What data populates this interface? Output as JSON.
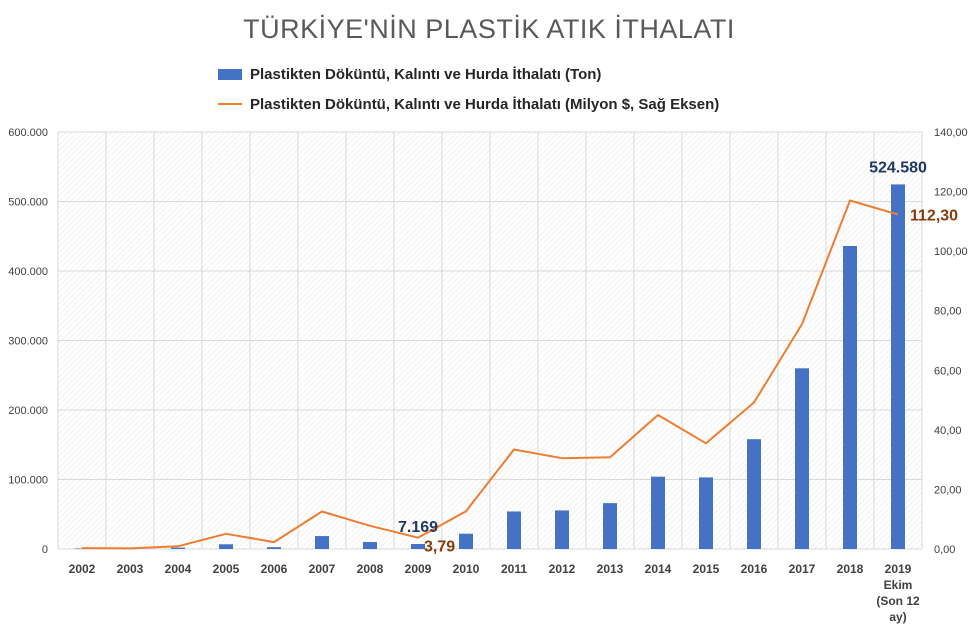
{
  "chart_data": {
    "type": "bar",
    "title": "TÜRKİYE'NİN PLASTİK ATIK İTHALATI",
    "categories": [
      "2002",
      "2003",
      "2004",
      "2005",
      "2006",
      "2007",
      "2008",
      "2009",
      "2010",
      "2011",
      "2012",
      "2013",
      "2014",
      "2015",
      "2016",
      "2017",
      "2018",
      "2019"
    ],
    "last_category_lines": [
      "2019",
      "Ekim",
      "(Son 12",
      "ay)"
    ],
    "series": [
      {
        "name": "Plastikten Döküntü, Kalıntı ve Hurda  İthalatı (Ton)",
        "type": "bar",
        "axis": "left",
        "color": "#4472C4",
        "values": [
          800,
          500,
          2000,
          6800,
          2600,
          18600,
          10000,
          7169,
          22000,
          54000,
          55500,
          66000,
          104000,
          103000,
          158000,
          260000,
          436000,
          524580
        ]
      },
      {
        "name": "Plastikten Döküntü, Kalıntı ve Hurda  İthalatı (Milyon $, Sağ Eksen)",
        "type": "line",
        "axis": "right",
        "color": "#ED7D31",
        "values": [
          0.3,
          0.2,
          0.9,
          5.1,
          2.3,
          12.6,
          7.8,
          3.79,
          12.7,
          33.4,
          30.5,
          30.8,
          45.0,
          35.5,
          49.2,
          75.5,
          117.0,
          112.3
        ]
      }
    ],
    "y_left": {
      "ylim": [
        0,
        600000
      ],
      "ticks": [
        0,
        100000,
        200000,
        300000,
        400000,
        500000,
        600000
      ],
      "tick_labels": [
        "0",
        "100.000",
        "200.000",
        "300.000",
        "400.000",
        "500.000",
        "600.000"
      ]
    },
    "y_right": {
      "ylim": [
        0,
        140
      ],
      "ticks": [
        0,
        20,
        40,
        60,
        80,
        100,
        120,
        140
      ],
      "tick_labels": [
        "0,00",
        "20,00",
        "40,00",
        "60,00",
        "80,00",
        "100,00",
        "120,00",
        "140,00"
      ]
    },
    "annotations": [
      {
        "series": 0,
        "index": 7,
        "text": "7.169",
        "color": "#1F3864"
      },
      {
        "series": 1,
        "index": 7,
        "text": "3,79",
        "color": "#843C0C"
      },
      {
        "series": 0,
        "index": 17,
        "text": "524.580",
        "color": "#1F3864"
      },
      {
        "series": 1,
        "index": 17,
        "text": "112,30",
        "color": "#843C0C"
      }
    ],
    "grid": true,
    "legend_position": "top"
  }
}
